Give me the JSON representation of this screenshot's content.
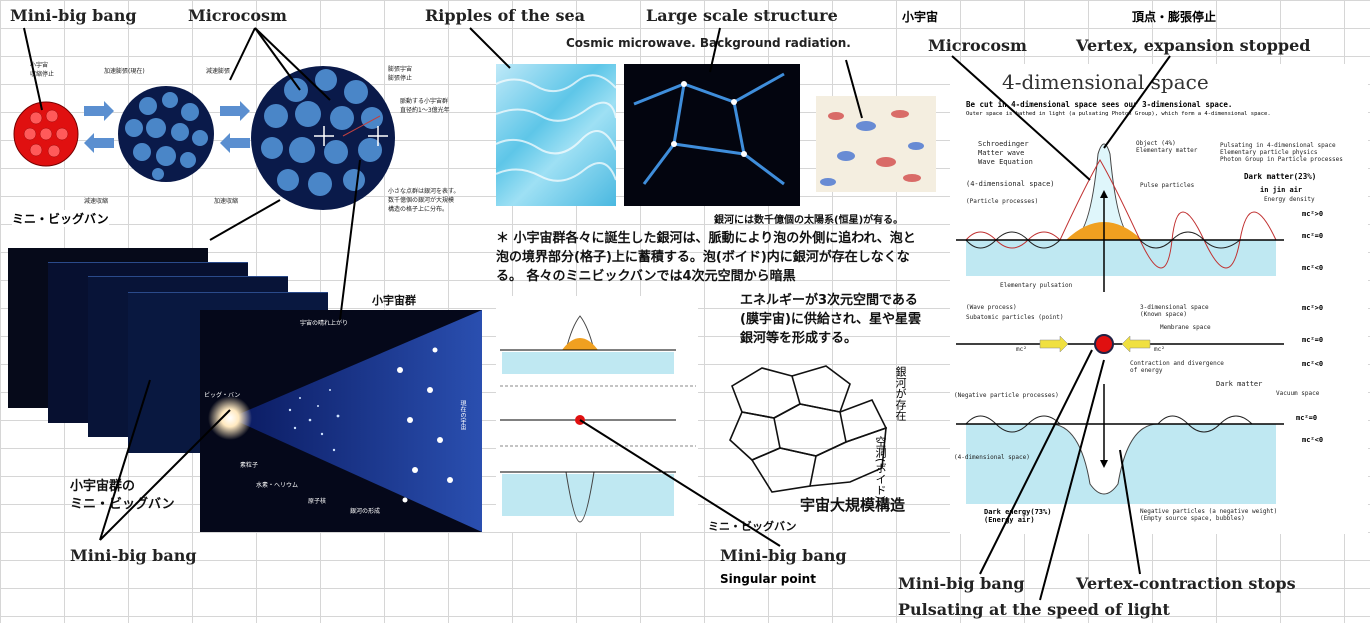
{
  "labels": {
    "mini_big_bang_top": "Mini-big bang",
    "microcosm_top": "Microcosm",
    "ripples": "Ripples of the sea",
    "large_scale": "Large scale structure",
    "cmb": "Cosmic microwave. Background radiation.",
    "shouuchuu": "小宇宙",
    "vertex_jp": "頂点・膨張停止",
    "microcosm_right": "Microcosm",
    "vertex_expansion": "Vertex, expansion stopped",
    "mini_big_bang_bottom_left": "Mini-big bang",
    "mini_big_bang_center": "Mini-big bang",
    "singular_point": "Singular point",
    "mini_big_bang_right": "Mini-big bang",
    "vertex_contraction": "Vertex-contraction stops",
    "pulsating": "Pulsating at the speed of light"
  },
  "left_diagram": {
    "small_universe_stop": "小宇宙\n収縮停止",
    "accel_expansion": "加速膨張(現在)",
    "decel_expansion": "減速膨張",
    "expansion_stop": "膨張宇宙\n膨張停止",
    "decel_contraction": "減速収縮",
    "accel_contraction": "加速収縮",
    "pulsating_groups": "脈動する小宇宙群\n直径約1〜3億光年",
    "small_dots_note": "小さな点群は銀河を表す。\n数千億個の銀河が大規模\n構造の格子上に分布。",
    "mini_bigbang_jp": "ミニ・ビッグバン",
    "small_universe_group": "小宇宙群",
    "small_group_mini": "小宇宙群の\nミニ・ビッグバン",
    "big_bang": "ビッグ・バン",
    "elementary": "素粒子",
    "hydrogen": "水素・ヘリウム",
    "atom": "原子核",
    "galaxy_form": "銀河の形成",
    "ripple_universe": "宇宙の晴れ上がり",
    "present_universe": "現在の宇宙"
  },
  "center_text": {
    "galaxy_note": "銀河には数千億個の太陽系(恒星)が有る。",
    "paragraph": "＊ 小宇宙群各々に誕生した銀河は、脈動により泡の外側に追われ、泡と泡の境界部分(格子)上に蓄積する。泡(ボイド)内に銀河が存在しなくなる。 各々のミニビックバンでは4次元空間から暗黒",
    "paragraph2": "エネルギーが3次元空間である(膜宇宙)に供給され、星や星雲銀河等を形成する。",
    "galaxies_exist": "銀河が存在",
    "void": "空洞(ボイド)",
    "large_structure_jp": "宇宙大規模構造",
    "mini_bigbang_jp": "ミニ・ビッグバン"
  },
  "right_diagram": {
    "title": "4-dimensional space",
    "subtitle": "Be cut in 4-dimensional space sees our 3-dimensional space.",
    "subtitle2": "Outer space is bathed in light (a pulsating Photon Group), which form a 4-dimensional space.",
    "schrodinger": "Schroedinger\nMatter wave\nWave Equation",
    "object": "Object (4%)\nElementary matter",
    "pulsating_4d": "Pulsating in 4-dimensional space\nElementary particle physics\nPhoton Group in Particle processes",
    "dark_matter_23": "Dark matter(23%)",
    "in_jin_air": "in jin air",
    "energy_density": "Energy density",
    "four_d_space_top": "(4-dimensional space)",
    "particle_processes": "(Particle processes)",
    "pulse_particles": "Pulse particles",
    "mc2_gt0_a": "mc²>0",
    "mc2_eq0_a": "mc²=0",
    "mc2_lt0_a": "mc²<0",
    "elementary_pulsation": "Elementary pulsation",
    "wave_process": "(Wave process)",
    "subatomic": "Subatomic particles (point)",
    "three_d_space": "3-dimensional space\n(Known space)",
    "membrane_space": "Membrane space",
    "mc2_gt0_b": "mc²>0",
    "mc2_eq0_b": "mc²=0",
    "mc2_lt0_b": "mc²<0",
    "mc2_left": "mc²",
    "mc2_right": "mc²",
    "contraction": "Contraction and divergence\nof energy",
    "negative_processes": "(Negative particle processes)",
    "dark_matter": "Dark matter",
    "vacuum_space": "Vacuum space",
    "mc2_eq0_c": "mc²=0",
    "mc2_lt0_c": "mc²<0",
    "four_d_space_bottom": "(4-dimensional space)",
    "dark_energy": "Dark energy(73%)\n(Energy air)",
    "negative_particles": "Negative particles (a negative weight)\n(Empty source space, bubbles)"
  },
  "colors": {
    "deep_blue": "#0a1a4a",
    "sphere_blue": "#4a86c8",
    "red": "#e01010",
    "cyan": "#bfe8f2",
    "orange": "#f0a020"
  }
}
